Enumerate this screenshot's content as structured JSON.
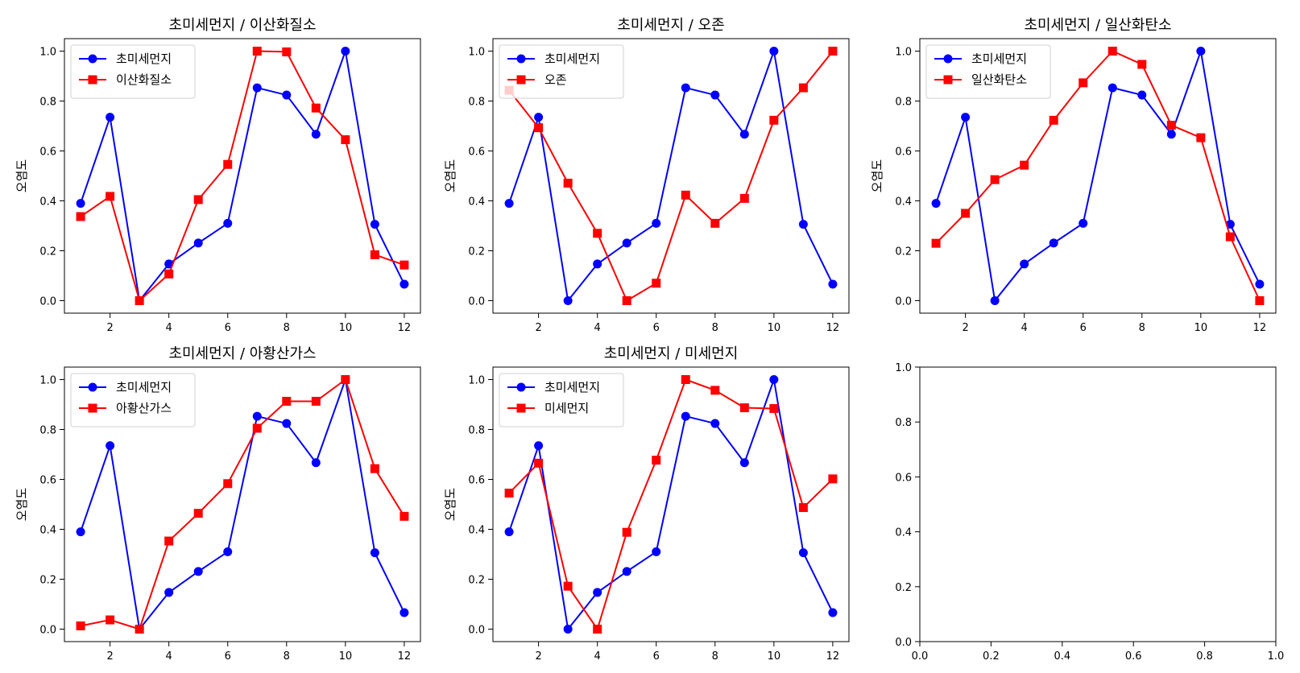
{
  "chart_data": [
    {
      "type": "line",
      "title": "초미세먼지 / 이산화질소",
      "xlabel": "",
      "ylabel": "오염도",
      "x": [
        1,
        2,
        3,
        4,
        5,
        6,
        7,
        8,
        9,
        10,
        11,
        12
      ],
      "xticks": [
        2,
        4,
        6,
        8,
        10,
        12
      ],
      "yticks": [
        0.0,
        0.2,
        0.4,
        0.6,
        0.8,
        1.0
      ],
      "ylim": [
        -0.05,
        1.05
      ],
      "legend_position": "upper-left",
      "grid": false,
      "series": [
        {
          "name": "초미세먼지",
          "color": "#0000ff",
          "marker": "circle",
          "values": [
            0.39,
            0.735,
            0.0,
            0.147,
            0.231,
            0.31,
            0.853,
            0.824,
            0.667,
            1.0,
            0.306,
            0.066
          ]
        },
        {
          "name": "이산화질소",
          "color": "#ff0000",
          "marker": "square",
          "values": [
            0.337,
            0.418,
            0.0,
            0.107,
            0.405,
            0.546,
            1.0,
            0.997,
            0.772,
            0.645,
            0.184,
            0.143
          ]
        }
      ]
    },
    {
      "type": "line",
      "title": "초미세먼지 / 오존",
      "xlabel": "",
      "ylabel": "오염도",
      "x": [
        1,
        2,
        3,
        4,
        5,
        6,
        7,
        8,
        9,
        10,
        11,
        12
      ],
      "xticks": [
        2,
        4,
        6,
        8,
        10,
        12
      ],
      "yticks": [
        0.0,
        0.2,
        0.4,
        0.6,
        0.8,
        1.0
      ],
      "ylim": [
        -0.05,
        1.05
      ],
      "legend_position": "upper-left",
      "grid": false,
      "series": [
        {
          "name": "초미세먼지",
          "color": "#0000ff",
          "marker": "circle",
          "values": [
            0.39,
            0.735,
            0.0,
            0.147,
            0.231,
            0.31,
            0.853,
            0.824,
            0.667,
            1.0,
            0.306,
            0.066
          ]
        },
        {
          "name": "오존",
          "color": "#ff0000",
          "marker": "square",
          "values": [
            0.843,
            0.693,
            0.471,
            0.27,
            0.0,
            0.07,
            0.423,
            0.31,
            0.41,
            0.723,
            0.853,
            1.0
          ]
        }
      ]
    },
    {
      "type": "line",
      "title": "초미세먼지 / 일산화탄소",
      "xlabel": "",
      "ylabel": "오염도",
      "x": [
        1,
        2,
        3,
        4,
        5,
        6,
        7,
        8,
        9,
        10,
        11,
        12
      ],
      "xticks": [
        2,
        4,
        6,
        8,
        10,
        12
      ],
      "yticks": [
        0.0,
        0.2,
        0.4,
        0.6,
        0.8,
        1.0
      ],
      "ylim": [
        -0.05,
        1.05
      ],
      "legend_position": "upper-left",
      "grid": false,
      "series": [
        {
          "name": "초미세먼지",
          "color": "#0000ff",
          "marker": "circle",
          "values": [
            0.39,
            0.735,
            0.0,
            0.147,
            0.231,
            0.31,
            0.853,
            0.824,
            0.667,
            1.0,
            0.306,
            0.066
          ]
        },
        {
          "name": "일산화탄소",
          "color": "#ff0000",
          "marker": "square",
          "values": [
            0.23,
            0.35,
            0.485,
            0.543,
            0.723,
            0.873,
            1.0,
            0.947,
            0.703,
            0.653,
            0.256,
            0.0
          ]
        }
      ]
    },
    {
      "type": "line",
      "title": "초미세먼지 / 아황산가스",
      "xlabel": "",
      "ylabel": "오염도",
      "x": [
        1,
        2,
        3,
        4,
        5,
        6,
        7,
        8,
        9,
        10,
        11,
        12
      ],
      "xticks": [
        2,
        4,
        6,
        8,
        10,
        12
      ],
      "yticks": [
        0.0,
        0.2,
        0.4,
        0.6,
        0.8,
        1.0
      ],
      "ylim": [
        -0.05,
        1.05
      ],
      "legend_position": "upper-left",
      "grid": false,
      "series": [
        {
          "name": "초미세먼지",
          "color": "#0000ff",
          "marker": "circle",
          "values": [
            0.39,
            0.735,
            0.0,
            0.147,
            0.231,
            0.31,
            0.853,
            0.824,
            0.667,
            1.0,
            0.306,
            0.066
          ]
        },
        {
          "name": "아황산가스",
          "color": "#ff0000",
          "marker": "square",
          "values": [
            0.013,
            0.037,
            0.0,
            0.353,
            0.464,
            0.583,
            0.805,
            0.913,
            0.913,
            1.0,
            0.643,
            0.452
          ]
        }
      ]
    },
    {
      "type": "line",
      "title": "초미세먼지 / 미세먼지",
      "xlabel": "",
      "ylabel": "오염도",
      "x": [
        1,
        2,
        3,
        4,
        5,
        6,
        7,
        8,
        9,
        10,
        11,
        12
      ],
      "xticks": [
        2,
        4,
        6,
        8,
        10,
        12
      ],
      "yticks": [
        0.0,
        0.2,
        0.4,
        0.6,
        0.8,
        1.0
      ],
      "ylim": [
        -0.05,
        1.05
      ],
      "legend_position": "upper-left",
      "grid": false,
      "series": [
        {
          "name": "초미세먼지",
          "color": "#0000ff",
          "marker": "circle",
          "values": [
            0.39,
            0.735,
            0.0,
            0.147,
            0.231,
            0.31,
            0.853,
            0.824,
            0.667,
            1.0,
            0.306,
            0.066
          ]
        },
        {
          "name": "미세먼지",
          "color": "#ff0000",
          "marker": "square",
          "values": [
            0.545,
            0.665,
            0.172,
            0.0,
            0.388,
            0.677,
            1.0,
            0.957,
            0.887,
            0.884,
            0.487,
            0.602
          ]
        }
      ]
    },
    {
      "type": "line",
      "title": "",
      "xlabel": "",
      "ylabel": "",
      "x": [],
      "xticks": [
        0.0,
        0.2,
        0.4,
        0.6,
        0.8,
        1.0
      ],
      "yticks": [
        0.0,
        0.2,
        0.4,
        0.6,
        0.8,
        1.0
      ],
      "xlim": [
        0.0,
        1.0
      ],
      "ylim": [
        0.0,
        1.0
      ],
      "grid": false,
      "series": []
    }
  ]
}
